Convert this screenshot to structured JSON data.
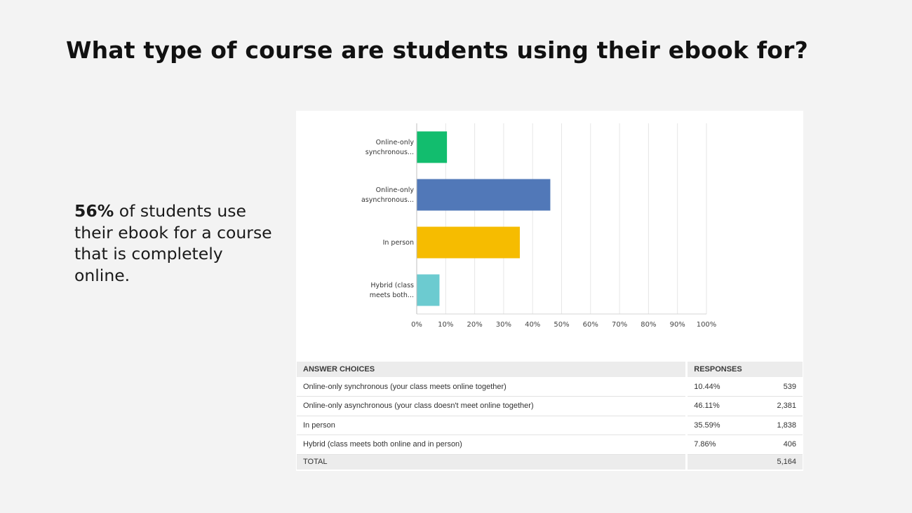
{
  "title": "What type of course are students using their ebook for?",
  "callout": {
    "highlight": "56%",
    "rest": " of students use their ebook for a course that is completely online."
  },
  "chart_data": {
    "type": "bar",
    "orientation": "horizontal",
    "categories": [
      "Online-only synchronous...",
      "Online-only asynchronous...",
      "In person",
      "Hybrid (class meets both..."
    ],
    "values": [
      10.44,
      46.11,
      35.59,
      7.86
    ],
    "colors": [
      "#12bd6e",
      "#5178b8",
      "#f6bc00",
      "#6ccbd0"
    ],
    "xlim": [
      0,
      100
    ],
    "xticks": [
      "0%",
      "10%",
      "20%",
      "30%",
      "40%",
      "50%",
      "60%",
      "70%",
      "80%",
      "90%",
      "100%"
    ],
    "grid": true,
    "title": "",
    "xlabel": "",
    "ylabel": ""
  },
  "table": {
    "header": {
      "choice": "ANSWER CHOICES",
      "responses": "RESPONSES"
    },
    "rows": [
      {
        "choice": "Online-only synchronous (your class meets online together)",
        "percent": "10.44%",
        "count": "539"
      },
      {
        "choice": "Online-only asynchronous (your class doesn't meet online together)",
        "percent": "46.11%",
        "count": "2,381"
      },
      {
        "choice": "In person",
        "percent": "35.59%",
        "count": "1,838"
      },
      {
        "choice": "Hybrid (class meets both online and in person)",
        "percent": "7.86%",
        "count": "406"
      }
    ],
    "total_label": "TOTAL",
    "total_count": "5,164"
  }
}
